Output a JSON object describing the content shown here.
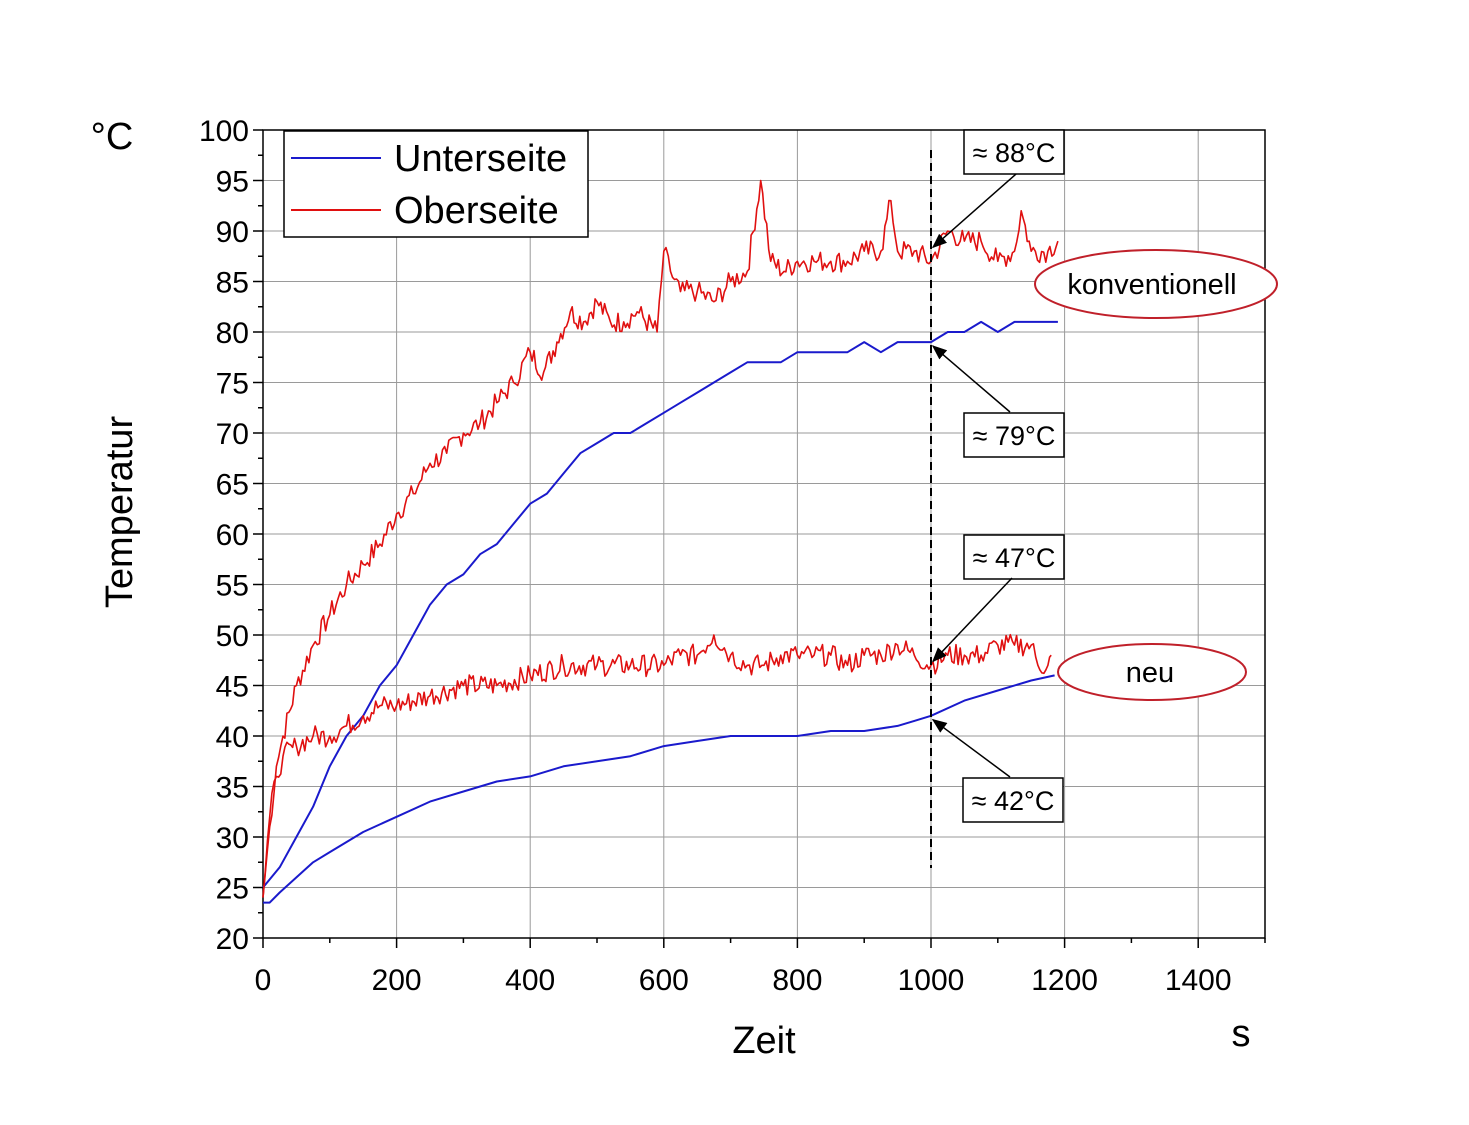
{
  "chart_data": {
    "type": "line",
    "xlabel": "Zeit",
    "xunit": "s",
    "ylabel": "Temperatur",
    "yunit": "°C",
    "xlim": [
      0,
      1500
    ],
    "ylim": [
      20,
      100
    ],
    "xticks": [
      0,
      200,
      400,
      600,
      800,
      1000,
      1200,
      1400
    ],
    "yticks": [
      20,
      25,
      30,
      35,
      40,
      45,
      50,
      55,
      60,
      65,
      70,
      75,
      80,
      85,
      90,
      95,
      100
    ],
    "grid": true,
    "legend": {
      "position": "top-left",
      "entries": [
        {
          "label": "Unterseite",
          "color": "#1a1acc"
        },
        {
          "label": "Oberseite",
          "color": "#e01010"
        }
      ]
    },
    "vline_x": 1000,
    "series": [
      {
        "name": "Oberseite",
        "group": "konventionell",
        "color": "#e01010",
        "x": [
          0,
          10,
          20,
          30,
          50,
          75,
          100,
          125,
          150,
          175,
          200,
          225,
          250,
          275,
          300,
          325,
          350,
          375,
          400,
          420,
          440,
          460,
          480,
          500,
          520,
          540,
          560,
          590,
          600,
          610,
          625,
          650,
          675,
          700,
          725,
          745,
          760,
          780,
          800,
          825,
          850,
          875,
          900,
          925,
          940,
          950,
          975,
          1000,
          1025,
          1050,
          1075,
          1100,
          1125,
          1135,
          1150,
          1175,
          1190
        ],
        "values": [
          24,
          31,
          37,
          40,
          45,
          49,
          52,
          55,
          57,
          59,
          62,
          64,
          67,
          68,
          70,
          71,
          73,
          75,
          78,
          76,
          79,
          82,
          81,
          83,
          81,
          81,
          82,
          80,
          88,
          86,
          84,
          84,
          83,
          85,
          86,
          95,
          87,
          86,
          87,
          87,
          87,
          87,
          88,
          88,
          93,
          88,
          88,
          87,
          90,
          89,
          89,
          87,
          88,
          92,
          88,
          88,
          89
        ]
      },
      {
        "name": "Unterseite",
        "group": "konventionell",
        "color": "#1a1acc",
        "x": [
          0,
          25,
          50,
          75,
          100,
          125,
          150,
          175,
          200,
          225,
          250,
          275,
          300,
          325,
          350,
          375,
          400,
          425,
          450,
          475,
          500,
          525,
          550,
          575,
          600,
          625,
          650,
          675,
          700,
          725,
          750,
          775,
          800,
          825,
          850,
          875,
          900,
          925,
          950,
          975,
          1000,
          1025,
          1050,
          1075,
          1100,
          1125,
          1150,
          1175,
          1190
        ],
        "values": [
          25,
          27,
          30,
          33,
          37,
          40,
          42,
          45,
          47,
          50,
          53,
          55,
          56,
          58,
          59,
          61,
          63,
          64,
          66,
          68,
          69,
          70,
          70,
          71,
          72,
          73,
          74,
          75,
          76,
          77,
          77,
          77,
          78,
          78,
          78,
          78,
          79,
          78,
          79,
          79,
          79,
          80,
          80,
          81,
          80,
          81,
          81,
          81,
          81
        ]
      },
      {
        "name": "Oberseite",
        "group": "neu",
        "color": "#e01010",
        "x": [
          0,
          10,
          20,
          30,
          50,
          75,
          100,
          125,
          150,
          175,
          200,
          250,
          300,
          350,
          400,
          450,
          500,
          550,
          600,
          625,
          650,
          675,
          700,
          725,
          750,
          775,
          800,
          825,
          850,
          875,
          900,
          925,
          950,
          975,
          1000,
          1025,
          1050,
          1075,
          1100,
          1125,
          1150,
          1160,
          1175,
          1180
        ],
        "values": [
          24,
          32,
          36,
          38,
          39,
          40,
          40,
          41,
          42,
          43,
          43,
          44,
          45,
          45,
          46,
          47,
          47,
          47,
          47,
          48,
          48,
          50,
          48,
          47,
          47,
          48,
          48,
          48,
          48,
          47,
          48,
          48,
          49,
          48,
          47,
          48,
          48,
          48,
          49,
          49,
          49,
          47,
          47,
          48
        ]
      },
      {
        "name": "Unterseite",
        "group": "neu",
        "color": "#1a1acc",
        "x": [
          0,
          10,
          25,
          50,
          75,
          100,
          150,
          200,
          250,
          300,
          350,
          400,
          450,
          500,
          550,
          600,
          650,
          700,
          750,
          800,
          850,
          900,
          950,
          975,
          1000,
          1050,
          1100,
          1150,
          1185
        ],
        "values": [
          23.5,
          23.5,
          24.5,
          26,
          27.5,
          28.5,
          30.5,
          32,
          33.5,
          34.5,
          35.5,
          36,
          37,
          37.5,
          38,
          39,
          39.5,
          40,
          40,
          40,
          40.5,
          40.5,
          41,
          41.5,
          42,
          43.5,
          44.5,
          45.5,
          46
        ]
      }
    ],
    "annotations": [
      {
        "text": "≈ 88°C",
        "x": 1000,
        "y": 88
      },
      {
        "text": "≈ 79°C",
        "x": 1000,
        "y": 79
      },
      {
        "text": "≈ 47°C",
        "x": 1000,
        "y": 47
      },
      {
        "text": "≈ 42°C",
        "x": 1000,
        "y": 42
      }
    ],
    "group_labels": [
      {
        "text": "konventionell",
        "color": "#c0202a"
      },
      {
        "text": "neu",
        "color": "#c0202a"
      }
    ]
  }
}
